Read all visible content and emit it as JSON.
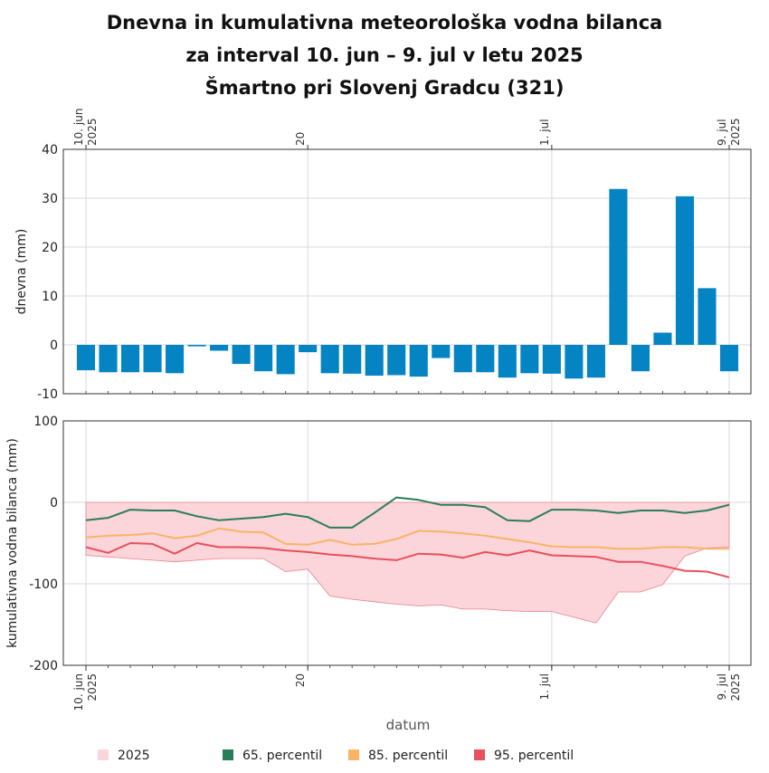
{
  "chart_data": {
    "title_lines": [
      "Dnevna in kumulativna meteorološka vodna bilanca",
      "za interval 10. jun – 9. jul v letu 2025",
      "Šmartno pri Slovenj Gradcu (321)"
    ],
    "xlabel": "datum",
    "x_dates": [
      "2025-06-10",
      "2025-06-11",
      "2025-06-12",
      "2025-06-13",
      "2025-06-14",
      "2025-06-15",
      "2025-06-16",
      "2025-06-17",
      "2025-06-18",
      "2025-06-19",
      "2025-06-20",
      "2025-06-21",
      "2025-06-22",
      "2025-06-23",
      "2025-06-24",
      "2025-06-25",
      "2025-06-26",
      "2025-06-27",
      "2025-06-28",
      "2025-06-29",
      "2025-06-30",
      "2025-07-01",
      "2025-07-02",
      "2025-07-03",
      "2025-07-04",
      "2025-07-05",
      "2025-07-06",
      "2025-07-07",
      "2025-07-08",
      "2025-07-09"
    ],
    "x_ticks": [
      {
        "date": "2025-06-10",
        "lines": [
          "10. jun",
          "2025"
        ]
      },
      {
        "date": "2025-06-20",
        "lines": [
          "20"
        ]
      },
      {
        "date": "2025-07-01",
        "lines": [
          "1. jul"
        ]
      },
      {
        "date": "2025-07-09",
        "lines": [
          "9. jul",
          "2025"
        ]
      }
    ],
    "daily": {
      "type": "bar",
      "ylabel": "dnevna (mm)",
      "ylim": [
        -10,
        40
      ],
      "yticks": [
        -10,
        0,
        10,
        20,
        30,
        40
      ],
      "color": "#0584c4",
      "values": [
        -5.2,
        -5.6,
        -5.6,
        -5.6,
        -5.8,
        -0.3,
        -1.2,
        -3.9,
        -5.4,
        -6.0,
        -1.5,
        -5.8,
        -5.9,
        -6.3,
        -6.2,
        -6.5,
        -2.7,
        -5.6,
        -5.6,
        -6.7,
        -5.8,
        -5.9,
        -6.9,
        -6.7,
        31.9,
        -5.4,
        2.5,
        30.4,
        11.6,
        -5.4
      ]
    },
    "cumulative": {
      "type": "line",
      "ylabel": "kumulativna vodna bilanca (mm)",
      "ylim": [
        -200,
        100
      ],
      "yticks": [
        -200,
        -100,
        0,
        100
      ],
      "band_2025": {
        "name": "2025",
        "fill": "#fbd5da",
        "stroke": "#e8838f",
        "upper": [
          0,
          0,
          0,
          0,
          0,
          0,
          0,
          0,
          0,
          0,
          0,
          0,
          0,
          0,
          0,
          0,
          0,
          0,
          0,
          0,
          0,
          0,
          0,
          0,
          0,
          0,
          0,
          0,
          0,
          0
        ],
        "lower": [
          -65,
          -67,
          -69,
          -71,
          -73,
          -71,
          -69,
          -69,
          -69,
          -85,
          -82,
          -115,
          -119,
          -122,
          -125,
          -127,
          -126,
          -131,
          -131,
          -133,
          -134,
          -134,
          -141,
          -148,
          -110,
          -110,
          -101,
          -66,
          -56,
          -55
        ]
      },
      "series": [
        {
          "name": "65. percentil",
          "color": "#2a7d5a",
          "values": [
            -22,
            -19,
            -9,
            -10,
            -10,
            -17,
            -22,
            -20,
            -18,
            -14,
            -18,
            -31,
            -31,
            -13,
            6,
            3,
            -3,
            -3,
            -6,
            -22,
            -23,
            -9,
            -9,
            -10,
            -13,
            -10,
            -10,
            -13,
            -10,
            -3
          ]
        },
        {
          "name": "85. percentil",
          "color": "#f9b466",
          "values": [
            -43,
            -41,
            -40,
            -38,
            -44,
            -41,
            -32,
            -36,
            -37,
            -51,
            -52,
            -46,
            -52,
            -51,
            -45,
            -35,
            -36,
            -38,
            -41,
            -45,
            -49,
            -54,
            -55,
            -55,
            -57,
            -57,
            -55,
            -55,
            -57,
            -57
          ]
        },
        {
          "name": "95. percentil",
          "color": "#e8505c",
          "values": [
            -55,
            -62,
            -50,
            -51,
            -63,
            -50,
            -55,
            -55,
            -56,
            -59,
            -61,
            -64,
            -66,
            -69,
            -71,
            -63,
            -64,
            -68,
            -61,
            -65,
            -59,
            -65,
            -66,
            -67,
            -73,
            -73,
            -78,
            -84,
            -85,
            -92
          ]
        }
      ]
    },
    "legend": {
      "placement": "bottom",
      "entries": [
        {
          "label": "2025",
          "color": "#fbd5da"
        },
        {
          "label": "65. percentil",
          "color": "#2a7d5a"
        },
        {
          "label": "85. percentil",
          "color": "#f9b466"
        },
        {
          "label": "95. percentil",
          "color": "#e8505c"
        }
      ]
    }
  }
}
